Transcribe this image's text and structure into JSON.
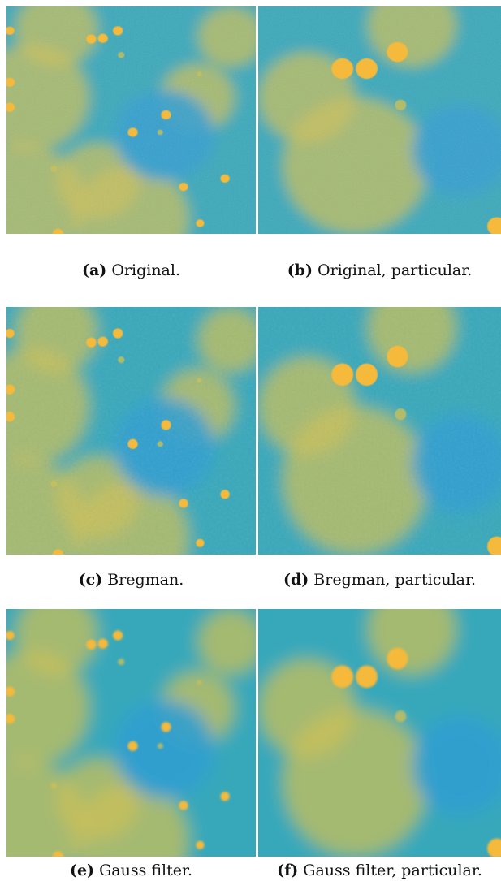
{
  "figure": {
    "panels": [
      {
        "id": "a",
        "label": "(a)",
        "caption": "Original.",
        "texture": "noisy",
        "view": "full"
      },
      {
        "id": "b",
        "label": "(b)",
        "caption": "Original, particular.",
        "texture": "noisy",
        "view": "zoom"
      },
      {
        "id": "c",
        "label": "(c)",
        "caption": "Bregman.",
        "texture": "bregman",
        "view": "full"
      },
      {
        "id": "d",
        "label": "(d)",
        "caption": "Bregman, particular.",
        "texture": "bregman",
        "view": "zoom"
      },
      {
        "id": "e",
        "label": "(e)",
        "caption": "Gauss filter.",
        "texture": "smooth",
        "view": "full"
      },
      {
        "id": "f",
        "label": "(f)",
        "caption": "Gauss filter, particular.",
        "texture": "smooth",
        "view": "zoom"
      }
    ],
    "colors": {
      "background_blue": "#2f9fd0",
      "mid_teal": "#3fb3a0",
      "warm_haze": "#c9c05a",
      "particle": "#f5b93a"
    }
  }
}
